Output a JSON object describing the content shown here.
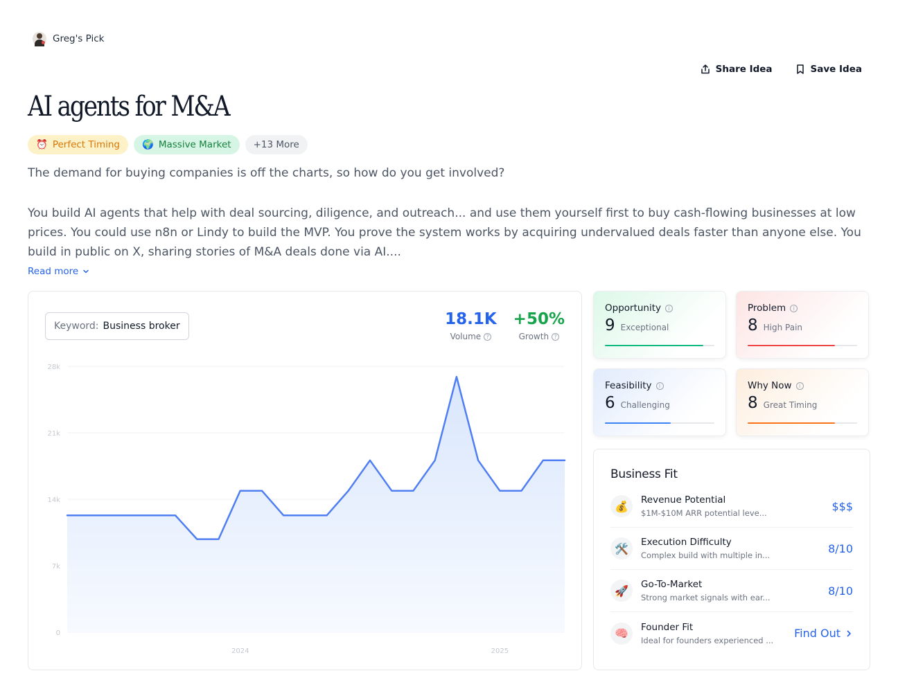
{
  "pick": {
    "label": "Greg's Pick"
  },
  "actions": {
    "share": "Share Idea",
    "save": "Save Idea"
  },
  "idea": {
    "title": "AI agents for M&A",
    "tags": [
      {
        "icon": "⏰",
        "label": "Perfect Timing"
      },
      {
        "icon": "🌍",
        "label": "Massive Market"
      },
      {
        "label": "+13 More"
      }
    ],
    "intro": "The demand for buying companies is off the charts, so how do you get involved?",
    "body": "You build AI agents that help with deal sourcing, diligence, and outreach... and use them yourself first to buy cash-flowing businesses at low prices. You could use n8n or Lindy to build the MVP. You prove the system works by acquiring undervalued deals faster than anyone else. You build in public on X, sharing stories of M&A deals done via AI....",
    "read_more": "Read more"
  },
  "keyword": {
    "label": "Keyword:",
    "value": "Business broker"
  },
  "stats": {
    "volume": {
      "value": "18.1K",
      "label": "Volume"
    },
    "growth": {
      "value": "+50%",
      "label": "Growth"
    }
  },
  "chart_data": {
    "type": "area",
    "title": "",
    "xlabel": "",
    "ylabel": "",
    "ylim": [
      0,
      28000
    ],
    "y_ticks": [
      0,
      7000,
      14000,
      21000,
      28000
    ],
    "y_tick_labels": [
      "0",
      "7k",
      "14k",
      "21k",
      "28k"
    ],
    "x_tick_labels": [
      {
        "label": "2024",
        "index": 8
      },
      {
        "label": "2025",
        "index": 20
      }
    ],
    "series": [
      {
        "name": "Business broker",
        "values": [
          12300,
          12300,
          12300,
          12300,
          12300,
          12300,
          9800,
          9800,
          14900,
          14900,
          12300,
          12300,
          12300,
          14900,
          18100,
          14900,
          14900,
          18100,
          26900,
          18100,
          14900,
          14900,
          18100,
          18100
        ]
      }
    ],
    "colors": {
      "line": "#4f7ef2",
      "fill_top": "#d9e6fc",
      "fill_bottom": "#f7faff"
    }
  },
  "scores": {
    "opportunity": {
      "title": "Opportunity",
      "value": "9",
      "desc": "Exceptional",
      "fraction": 0.9,
      "color": "#10b981"
    },
    "problem": {
      "title": "Problem",
      "value": "8",
      "desc": "High Pain",
      "fraction": 0.8,
      "color": "#ef4444"
    },
    "feasibility": {
      "title": "Feasibility",
      "value": "6",
      "desc": "Challenging",
      "fraction": 0.6,
      "color": "#3b82f6"
    },
    "why_now": {
      "title": "Why Now",
      "value": "8",
      "desc": "Great Timing",
      "fraction": 0.8,
      "color": "#f97316"
    }
  },
  "business_fit": {
    "title": "Business Fit",
    "items": [
      {
        "icon": "💰",
        "title": "Revenue Potential",
        "desc": "$1M-$10M ARR potential leve...",
        "value": "$$$"
      },
      {
        "icon": "🛠️",
        "title": "Execution Difficulty",
        "desc": "Complex build with multiple in...",
        "value": "8/10"
      },
      {
        "icon": "🚀",
        "title": "Go-To-Market",
        "desc": "Strong market signals with ear...",
        "value": "8/10"
      },
      {
        "icon": "🧠",
        "title": "Founder Fit",
        "desc": "Ideal for founders experienced ...",
        "value": "Find Out"
      }
    ]
  }
}
